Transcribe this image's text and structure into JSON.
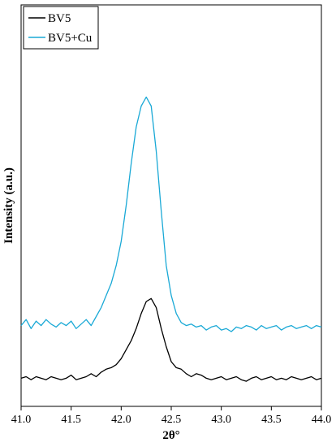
{
  "chart_data": {
    "type": "line",
    "xlabel": "2θ°",
    "ylabel": "Intensity (a.u.)",
    "xlim": [
      41.0,
      44.0
    ],
    "ylim": [
      0,
      100
    ],
    "xticks": [
      "41.0",
      "41.5",
      "42.0",
      "42.5",
      "43.0",
      "43.5",
      "44.0"
    ],
    "yticks_shown": false,
    "grid": false,
    "legend": "top-left",
    "series": [
      {
        "name": "BV5",
        "color": "#000000",
        "x": [
          41.0,
          41.05,
          41.1,
          41.15,
          41.2,
          41.25,
          41.3,
          41.35,
          41.4,
          41.45,
          41.5,
          41.55,
          41.6,
          41.65,
          41.7,
          41.75,
          41.8,
          41.85,
          41.9,
          41.95,
          42.0,
          42.05,
          42.1,
          42.15,
          42.2,
          42.25,
          42.3,
          42.35,
          42.4,
          42.45,
          42.5,
          42.55,
          42.6,
          42.65,
          42.7,
          42.75,
          42.8,
          42.85,
          42.9,
          42.95,
          43.0,
          43.05,
          43.1,
          43.15,
          43.2,
          43.25,
          43.3,
          43.35,
          43.4,
          43.45,
          43.5,
          43.55,
          43.6,
          43.65,
          43.7,
          43.75,
          43.8,
          43.85,
          43.9,
          43.95,
          44.0
        ],
        "y": [
          4.5,
          5.0,
          4.0,
          5.0,
          4.5,
          4.0,
          5.0,
          4.5,
          4.0,
          4.5,
          5.5,
          4.0,
          4.5,
          5.0,
          6.0,
          5.0,
          6.5,
          7.5,
          8.0,
          9.0,
          11.0,
          14.0,
          17.0,
          21.0,
          26.0,
          30.0,
          31.0,
          28.0,
          21.0,
          15.0,
          10.0,
          8.0,
          7.5,
          6.0,
          5.0,
          6.0,
          5.5,
          4.5,
          4.0,
          4.5,
          5.0,
          4.0,
          4.5,
          5.0,
          4.0,
          3.5,
          4.5,
          5.0,
          4.0,
          4.5,
          5.0,
          4.0,
          4.5,
          4.0,
          5.0,
          4.5,
          4.0,
          4.5,
          5.0,
          4.0,
          4.5
        ]
      },
      {
        "name": "BV5+Cu",
        "color": "#1aa9d6",
        "x": [
          41.0,
          41.05,
          41.1,
          41.15,
          41.2,
          41.25,
          41.3,
          41.35,
          41.4,
          41.45,
          41.5,
          41.55,
          41.6,
          41.65,
          41.7,
          41.75,
          41.8,
          41.85,
          41.9,
          41.95,
          42.0,
          42.05,
          42.1,
          42.15,
          42.2,
          42.25,
          42.3,
          42.35,
          42.4,
          42.45,
          42.5,
          42.55,
          42.6,
          42.65,
          42.7,
          42.75,
          42.8,
          42.85,
          42.9,
          42.95,
          43.0,
          43.05,
          43.1,
          43.15,
          43.2,
          43.25,
          43.3,
          43.35,
          43.4,
          43.45,
          43.5,
          43.55,
          43.6,
          43.65,
          43.7,
          43.75,
          43.8,
          43.85,
          43.9,
          43.95,
          44.0
        ],
        "y": [
          22.0,
          24.0,
          21.0,
          23.5,
          22.0,
          24.0,
          22.5,
          21.5,
          23.0,
          22.0,
          23.5,
          21.0,
          22.5,
          24.0,
          22.0,
          25.0,
          28.0,
          32.0,
          36.0,
          42.0,
          50.0,
          62.0,
          76.0,
          88.0,
          95.0,
          98.0,
          95.0,
          80.0,
          60.0,
          42.0,
          32.0,
          26.0,
          23.0,
          22.0,
          22.5,
          21.5,
          22.0,
          20.5,
          21.5,
          22.0,
          20.5,
          21.0,
          20.0,
          21.5,
          21.0,
          22.0,
          21.5,
          20.5,
          22.0,
          21.0,
          21.5,
          22.0,
          20.5,
          21.5,
          22.0,
          21.0,
          21.5,
          22.0,
          21.0,
          22.0,
          21.5
        ]
      }
    ]
  }
}
